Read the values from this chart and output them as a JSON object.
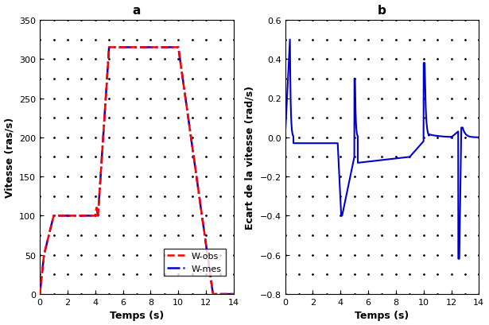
{
  "title_a": "a",
  "title_b": "b",
  "xlabel": "Temps (s)",
  "ylabel_a": "Vitesse (ras/s)",
  "ylabel_b": "Ecart de la vitesse (rad/s)",
  "xlim": [
    0,
    14
  ],
  "ylim_a": [
    0,
    350
  ],
  "ylim_b": [
    -0.8,
    0.6
  ],
  "xticks_a": [
    0,
    2,
    4,
    6,
    8,
    10,
    12,
    14
  ],
  "xticks_b": [
    0,
    2,
    4,
    6,
    8,
    10,
    12,
    14
  ],
  "yticks_a": [
    0,
    50,
    100,
    150,
    200,
    250,
    300,
    350
  ],
  "yticks_b": [
    -0.8,
    -0.6,
    -0.4,
    -0.2,
    0.0,
    0.2,
    0.4,
    0.6
  ],
  "legend_labels": [
    "W-obs",
    "W-mes"
  ],
  "color_obs": "#FF0000",
  "color_mes": "#0000CC",
  "color_error": "#0000CC",
  "background": "#FFFFFF",
  "dot_color": "#000000"
}
